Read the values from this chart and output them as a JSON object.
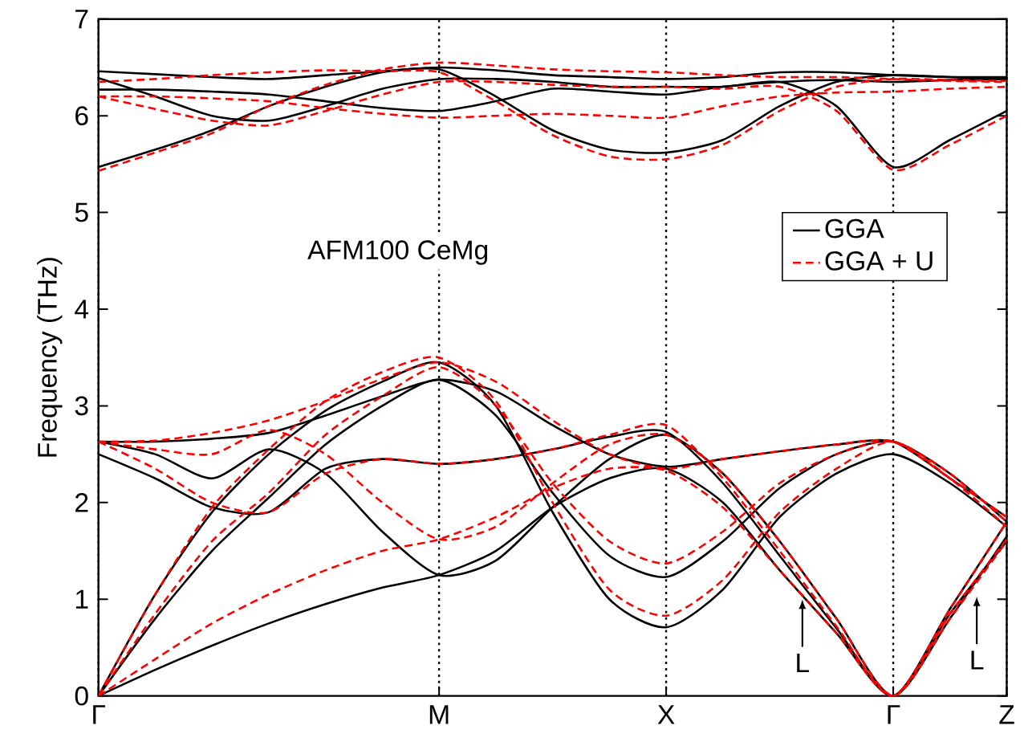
{
  "chart_data": {
    "type": "line",
    "title": "AFM100 CeMg",
    "ylabel": "Frequency (THz)",
    "categories": [
      "Γ",
      null,
      null,
      null,
      null,
      null,
      "M",
      null,
      null,
      null,
      "X",
      null,
      null,
      null,
      "Γ",
      null,
      "Z"
    ],
    "ylim": [
      0,
      7
    ],
    "yticks": [
      0,
      1,
      2,
      3,
      4,
      5,
      6,
      7
    ],
    "legend": "top right",
    "grid": "x",
    "marker": "none",
    "annotations": [
      {
        "text": "L",
        "y": 1.0
      },
      "L"
    ],
    "series": [
      {
        "name": "GGA",
        "color": "#000000",
        "line_style": "solid",
        "values": [
          0,
          0.27,
          0.52,
          0.75,
          0.95,
          1.12,
          1.25,
          1.5,
          1.95,
          2.25,
          2.35,
          2.0,
          1.3,
          0.65,
          0,
          0.85,
          1.6
        ]
      },
      {
        "color": "#000000",
        "line_style": "solid",
        "values": [
          0,
          1.05,
          1.9,
          2.5,
          2.95,
          3.25,
          3.45,
          3.0,
          1.9,
          1.0,
          0.71,
          1.1,
          1.85,
          2.3,
          2.5,
          2.2,
          1.75
        ]
      },
      {
        "color": "#000000",
        "line_style": "solid",
        "values": [
          0,
          0.8,
          1.5,
          2.05,
          2.6,
          3.0,
          3.27,
          2.9,
          2.1,
          1.45,
          1.23,
          1.6,
          2.15,
          2.5,
          2.63,
          2.3,
          1.8
        ]
      },
      {
        "color": "#000000",
        "line_style": "solid",
        "values": [
          2.5,
          2.25,
          1.95,
          1.9,
          2.35,
          2.45,
          2.4,
          2.45,
          2.55,
          2.68,
          2.73,
          2.2,
          1.45,
          0.7,
          0,
          0.9,
          1.8
        ]
      },
      {
        "color": "#000000",
        "line_style": "solid",
        "values": [
          2.63,
          2.5,
          2.25,
          2.55,
          2.3,
          1.7,
          1.25,
          1.4,
          1.95,
          2.45,
          2.7,
          2.3,
          1.6,
          0.8,
          0,
          0.8,
          1.65
        ]
      },
      {
        "color": "#000000",
        "line_style": "solid",
        "values": [
          2.63,
          2.63,
          2.66,
          2.72,
          2.9,
          3.1,
          3.27,
          3.15,
          2.8,
          2.5,
          2.37,
          2.45,
          2.53,
          2.6,
          2.63,
          2.25,
          1.85
        ]
      },
      {
        "color": "#000000",
        "line_style": "solid",
        "values": [
          5.47,
          5.65,
          5.85,
          6.1,
          6.3,
          6.45,
          6.5,
          6.47,
          6.42,
          6.4,
          6.38,
          6.4,
          6.45,
          6.45,
          6.42,
          6.4,
          6.38
        ]
      },
      {
        "color": "#000000",
        "line_style": "solid",
        "values": [
          6.46,
          6.43,
          6.4,
          6.38,
          6.42,
          6.46,
          6.48,
          6.2,
          5.85,
          5.65,
          5.62,
          5.75,
          6.1,
          6.35,
          6.42,
          6.4,
          6.4
        ]
      },
      {
        "color": "#000000",
        "line_style": "solid",
        "values": [
          6.39,
          6.2,
          6.0,
          5.95,
          6.1,
          6.28,
          6.38,
          6.38,
          6.35,
          6.3,
          6.3,
          6.3,
          6.35,
          6.1,
          5.47,
          5.75,
          6.05
        ]
      },
      {
        "color": "#000000",
        "line_style": "solid",
        "values": [
          6.27,
          6.27,
          6.25,
          6.22,
          6.15,
          6.08,
          6.05,
          6.15,
          6.28,
          6.25,
          6.22,
          6.3,
          6.35,
          6.37,
          6.35,
          6.37,
          6.38
        ]
      },
      {
        "name": "GGA + U",
        "color": "#ff0000",
        "line_style": "dashed",
        "values": [
          0,
          0.38,
          0.75,
          1.05,
          1.3,
          1.5,
          1.62,
          1.85,
          2.15,
          2.35,
          2.33,
          1.95,
          1.3,
          0.65,
          0,
          0.85,
          1.62
        ]
      },
      {
        "color": "#ff0000",
        "line_style": "dashed",
        "values": [
          0,
          1.05,
          1.95,
          2.55,
          3.05,
          3.35,
          3.5,
          3.05,
          2.0,
          1.1,
          0.83,
          1.2,
          1.9,
          2.35,
          2.63,
          2.25,
          1.75
        ]
      },
      {
        "color": "#ff0000",
        "line_style": "dashed",
        "values": [
          0,
          0.85,
          1.6,
          2.1,
          2.7,
          3.1,
          3.4,
          3.0,
          2.2,
          1.6,
          1.37,
          1.7,
          2.2,
          2.5,
          2.63,
          2.3,
          1.8
        ]
      },
      {
        "color": "#ff0000",
        "line_style": "dashed",
        "values": [
          2.63,
          2.35,
          2.0,
          1.9,
          2.3,
          2.45,
          2.4,
          2.45,
          2.55,
          2.7,
          2.8,
          2.25,
          1.5,
          0.72,
          0,
          0.9,
          1.8
        ]
      },
      {
        "color": "#ff0000",
        "line_style": "dashed",
        "values": [
          2.63,
          2.55,
          2.5,
          2.75,
          2.5,
          2.0,
          1.62,
          1.75,
          2.2,
          2.6,
          2.7,
          2.3,
          1.6,
          0.8,
          0,
          0.8,
          1.6
        ]
      },
      {
        "color": "#ff0000",
        "line_style": "dashed",
        "values": [
          2.63,
          2.64,
          2.72,
          2.85,
          3.05,
          3.28,
          3.45,
          3.25,
          2.85,
          2.5,
          2.35,
          2.45,
          2.53,
          2.6,
          2.63,
          2.25,
          1.85
        ]
      },
      {
        "color": "#ff0000",
        "line_style": "dashed",
        "values": [
          5.43,
          5.62,
          5.82,
          6.1,
          6.32,
          6.48,
          6.55,
          6.52,
          6.48,
          6.46,
          6.45,
          6.42,
          6.4,
          6.4,
          6.38,
          6.36,
          6.35
        ]
      },
      {
        "color": "#ff0000",
        "line_style": "dashed",
        "values": [
          6.35,
          6.38,
          6.42,
          6.45,
          6.47,
          6.46,
          6.45,
          6.15,
          5.8,
          5.58,
          5.55,
          5.7,
          6.05,
          6.3,
          6.38,
          6.37,
          6.36
        ]
      },
      {
        "color": "#ff0000",
        "line_style": "dashed",
        "values": [
          6.2,
          6.07,
          5.95,
          5.9,
          6.05,
          6.22,
          6.35,
          6.35,
          6.32,
          6.3,
          6.3,
          6.28,
          6.3,
          6.05,
          5.44,
          5.7,
          6.0
        ]
      },
      {
        "color": "#ff0000",
        "line_style": "dashed",
        "values": [
          6.2,
          6.2,
          6.18,
          6.15,
          6.08,
          6.02,
          5.98,
          6.0,
          6.02,
          6.0,
          5.98,
          6.1,
          6.2,
          6.24,
          6.25,
          6.28,
          6.3
        ]
      }
    ]
  }
}
